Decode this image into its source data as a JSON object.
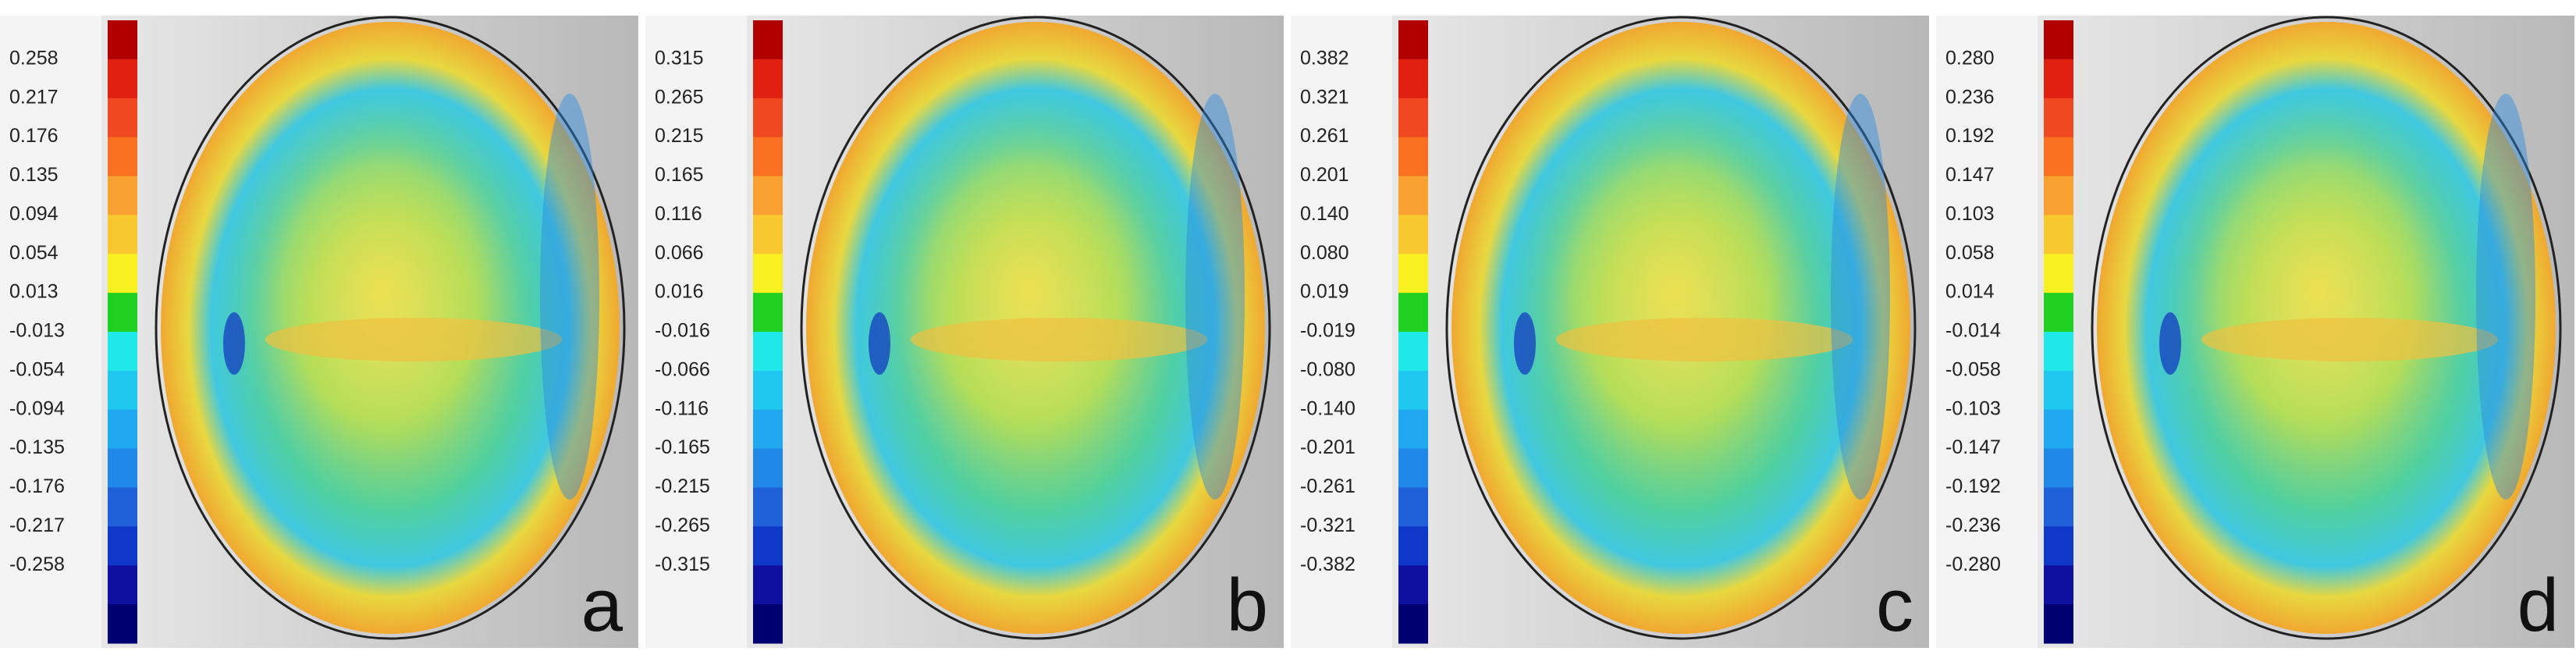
{
  "panels": [
    {
      "label": "a",
      "scale_labels": [
        "0.258",
        "0.217",
        "0.176",
        "0.135",
        "0.094",
        "0.054",
        "0.013",
        "-0.013",
        "-0.054",
        "-0.094",
        "-0.135",
        "-0.176",
        "-0.217",
        "-0.258"
      ]
    },
    {
      "label": "b",
      "scale_labels": [
        "0.315",
        "0.265",
        "0.215",
        "0.165",
        "0.116",
        "0.066",
        "0.016",
        "-0.016",
        "-0.066",
        "-0.116",
        "-0.165",
        "-0.215",
        "-0.265",
        "-0.315"
      ]
    },
    {
      "label": "c",
      "scale_labels": [
        "0.382",
        "0.321",
        "0.261",
        "0.201",
        "0.140",
        "0.080",
        "0.019",
        "-0.019",
        "-0.080",
        "-0.140",
        "-0.201",
        "-0.261",
        "-0.321",
        "-0.382"
      ]
    },
    {
      "label": "d",
      "scale_labels": [
        "0.280",
        "0.236",
        "0.192",
        "0.147",
        "0.103",
        "0.058",
        "0.014",
        "-0.014",
        "-0.058",
        "-0.103",
        "-0.147",
        "-0.192",
        "-0.236",
        "-0.280"
      ]
    }
  ]
}
